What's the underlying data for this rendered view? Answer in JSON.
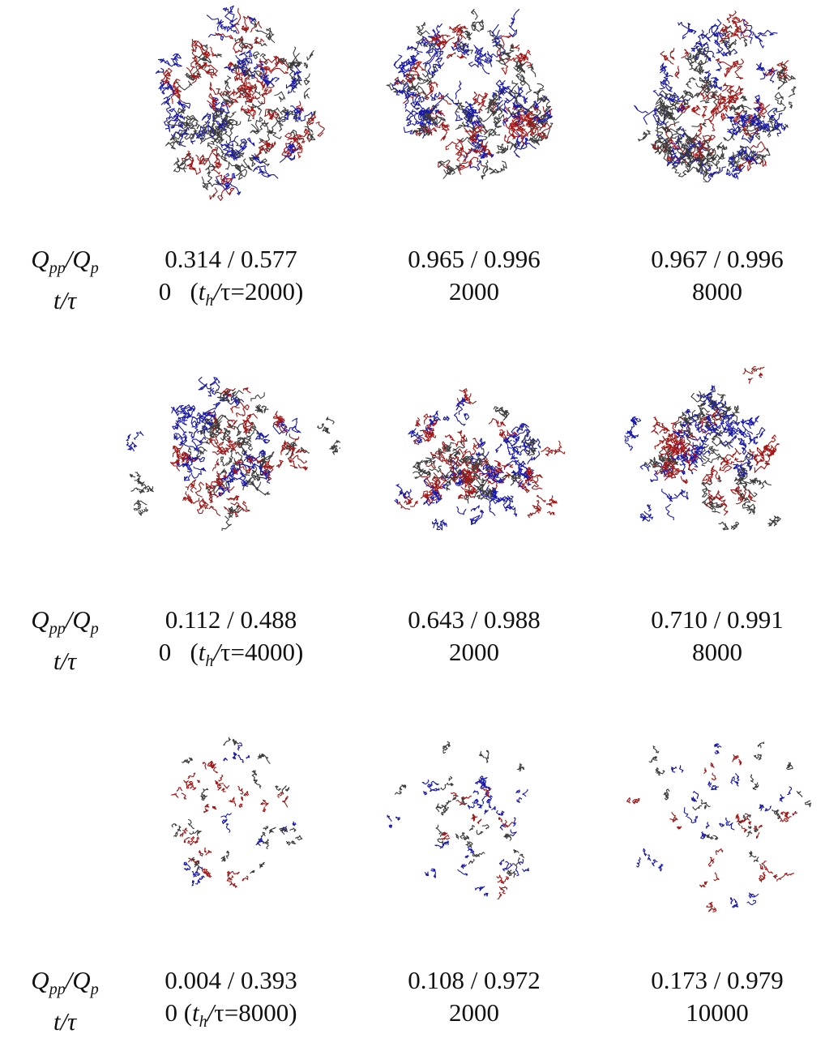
{
  "palette": {
    "red": "#a01818",
    "blue": "#1a1aa8",
    "gray": "#3c3c3c"
  },
  "rows": [
    {
      "label_top": "Q",
      "label_top_sub": "pp",
      "label_mid": "/Q",
      "label_mid_sub": "p",
      "label_bottom": "t/τ",
      "panels": [
        {
          "icon": "compact-capsid-icon",
          "q": "0.314 / 0.577",
          "t": "0",
          "th": "2000"
        },
        {
          "icon": "compact-capsid-icon",
          "q": "0.965 / 0.996",
          "t": "2000"
        },
        {
          "icon": "compact-capsid-icon",
          "q": "0.967 / 0.996",
          "t": "8000"
        }
      ]
    },
    {
      "label_top": "Q",
      "label_top_sub": "pp",
      "label_mid": "/Q",
      "label_mid_sub": "p",
      "label_bottom": "t/τ",
      "panels": [
        {
          "icon": "partial-capsid-icon",
          "q": "0.112 / 0.488",
          "t": "0",
          "th": "4000"
        },
        {
          "icon": "partial-capsid-icon",
          "q": "0.643 / 0.988",
          "t": "2000"
        },
        {
          "icon": "partial-capsid-icon",
          "q": "0.710 / 0.991",
          "t": "8000"
        }
      ]
    },
    {
      "label_top": "Q",
      "label_top_sub": "pp",
      "label_mid": "/Q",
      "label_mid_sub": "p",
      "label_bottom": "t/τ",
      "panels": [
        {
          "icon": "dispersed-capsid-icon",
          "q": "0.004 / 0.393",
          "t": "0",
          "th": "8000"
        },
        {
          "icon": "dispersed-capsid-icon",
          "q": "0.108 / 0.972",
          "t": "2000"
        },
        {
          "icon": "dispersed-capsid-icon",
          "q": "0.173 / 0.979",
          "t": "10000"
        }
      ]
    }
  ]
}
